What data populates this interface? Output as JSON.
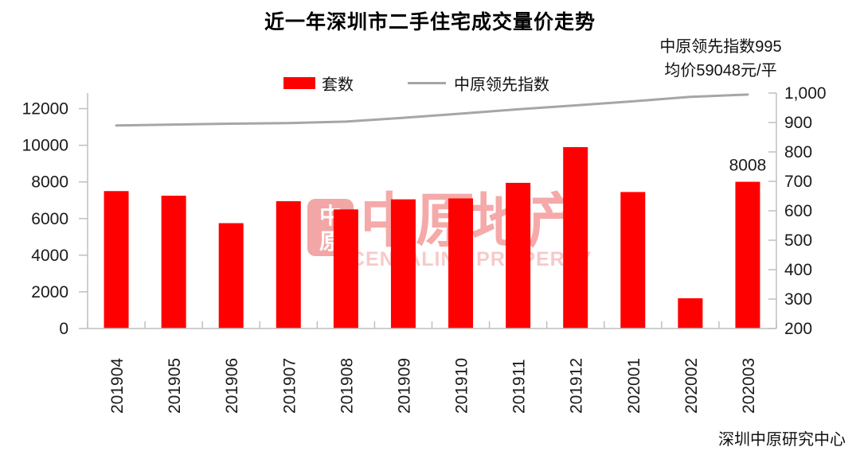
{
  "title": "近一年深圳市二手住宅成交量价走势",
  "annotation": {
    "line1": "中原领先指数995",
    "line2": "均价59048元/平"
  },
  "legend": [
    {
      "label": "套数",
      "type": "bar",
      "color": "#FF0000"
    },
    {
      "label": "中原领先指数",
      "type": "line",
      "color": "#A6A6A6"
    }
  ],
  "source": "深圳中原研究中心",
  "watermark": {
    "logo_top": "中",
    "logo_bottom": "原",
    "text": "中原地产",
    "subtext": "CENTALINE PROPERTY"
  },
  "chart_data": {
    "type": "bar",
    "combo": "bar+line dual axis",
    "title": "近一年深圳市二手住宅成交量价走势",
    "categories": [
      "201904",
      "201905",
      "201906",
      "201907",
      "201908",
      "201909",
      "201910",
      "201911",
      "201912",
      "202001",
      "202002",
      "202003"
    ],
    "series": [
      {
        "name": "套数",
        "type": "bar",
        "axis": "left",
        "color": "#FF0000",
        "values": [
          7500,
          7250,
          5750,
          6950,
          6500,
          7050,
          7100,
          7950,
          9900,
          7450,
          1650,
          8008
        ]
      },
      {
        "name": "中原领先指数",
        "type": "line",
        "axis": "right",
        "color": "#A6A6A6",
        "values": [
          890,
          893,
          896,
          898,
          903,
          916,
          930,
          945,
          958,
          972,
          987,
          995
        ]
      }
    ],
    "left_axis": {
      "min": 0,
      "max": 12000,
      "tick_step": 2000,
      "tick_labels": [
        "0",
        "2000",
        "4000",
        "6000",
        "8000",
        "10000",
        "12000"
      ]
    },
    "right_axis": {
      "min": 200,
      "max": 1000,
      "tick_step": 100,
      "tick_labels": [
        "200",
        "300",
        "400",
        "500",
        "600",
        "700",
        "800",
        "900",
        "1,000"
      ]
    },
    "data_labels": [
      {
        "series": "套数",
        "category": "202003",
        "text": "8008"
      }
    ],
    "legend_position": "top",
    "grid": false
  }
}
